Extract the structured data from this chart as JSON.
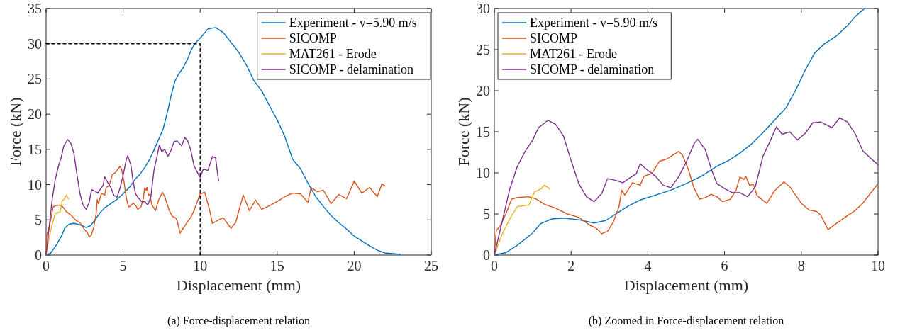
{
  "chart_data": [
    {
      "type": "line",
      "title": "(a) Force-displacement relation",
      "xlabel": "Displacement (mm)",
      "ylabel": "Force (kN)",
      "xlim": [
        0,
        25
      ],
      "ylim": [
        0,
        35
      ],
      "xticks": [
        0,
        5,
        10,
        15,
        20,
        25
      ],
      "yticks": [
        0,
        5,
        10,
        15,
        20,
        25,
        30,
        35
      ],
      "grid": false,
      "legend": "top right",
      "marker": "none",
      "series": [
        {
          "name": "Experiment - v=5.90 m/s",
          "color": "#0072bd",
          "x": [
            0,
            0.3,
            0.6,
            1,
            1.2,
            1.5,
            1.8,
            2.2,
            2.6,
            2.9,
            3.2,
            3.5,
            3.8,
            4.2,
            4.6,
            5,
            5.4,
            5.8,
            6.1,
            6.4,
            6.7,
            7,
            7.3,
            7.6,
            7.9,
            8.1,
            8.35,
            8.6,
            8.9,
            9.2,
            9.4,
            9.65,
            10,
            10.2,
            10.5,
            11,
            11.5,
            12,
            12.5,
            13,
            13.5,
            14,
            14.5,
            15,
            15.5,
            16,
            16.5,
            17,
            17.5,
            18,
            18.5,
            19,
            19.5,
            20,
            20.5,
            21,
            21.5,
            22,
            22.5,
            23
          ],
          "values": [
            0,
            0.3,
            1.2,
            2.7,
            3.8,
            4.4,
            4.5,
            4.3,
            3.9,
            4.2,
            5.1,
            6,
            6.7,
            7.3,
            7.9,
            8.7,
            9.6,
            10.8,
            11.5,
            12.4,
            13.5,
            14.9,
            16.4,
            17.9,
            20.5,
            22.5,
            24.6,
            25.7,
            26.6,
            27.9,
            29,
            30,
            30.8,
            31.3,
            32.1,
            32.3,
            31.6,
            30.2,
            28.8,
            27,
            24.7,
            23.3,
            21.2,
            19.2,
            16.8,
            13.6,
            12.3,
            10.2,
            8.3,
            6.9,
            5.6,
            4.6,
            3.7,
            2.7,
            2,
            1.3,
            0.7,
            0.3,
            0.2,
            0.1
          ]
        },
        {
          "name": "SICOMP",
          "color": "#d95319",
          "x": [
            0,
            0.05,
            0.15,
            0.3,
            0.45,
            0.6,
            0.9,
            1.1,
            1.3,
            1.6,
            1.9,
            2.2,
            2.5,
            2.65,
            2.8,
            2.95,
            3.1,
            3.25,
            3.32,
            3.4,
            3.6,
            3.8,
            3.9,
            4.1,
            4.3,
            4.5,
            4.7,
            4.8,
            4.9,
            5.05,
            5.2,
            5.35,
            5.5,
            5.65,
            5.8,
            5.95,
            6.15,
            6.3,
            6.4,
            6.5,
            6.55,
            6.65,
            6.75,
            6.85,
            7.1,
            7.3,
            7.55,
            7.7,
            8,
            8.2,
            8.4,
            8.5,
            8.7,
            8.9,
            9.2,
            9.4,
            9.6,
            9.8,
            10,
            10.3,
            10.6,
            10.8,
            11.2,
            11.5,
            12,
            12.3,
            12.6,
            12.8,
            13.2,
            13.6,
            14,
            14.5,
            15,
            15.5,
            16,
            16.5,
            17,
            17.2,
            17.6,
            18,
            18.5,
            19,
            19.5,
            20,
            20.5,
            21,
            21.5,
            21.8,
            22
          ],
          "values": [
            0,
            3,
            3.5,
            5,
            6.8,
            7,
            7.1,
            6.8,
            6.2,
            5.7,
            5,
            4.6,
            3.6,
            3.3,
            2.6,
            2.9,
            4,
            5.9,
            7.9,
            7.3,
            8.8,
            8.5,
            9.6,
            9.9,
            11.4,
            11.7,
            12.3,
            12.6,
            12.2,
            10.5,
            8.2,
            6.8,
            7,
            7.4,
            7.1,
            6.5,
            6.8,
            7.9,
            9.5,
            9.2,
            9.6,
            8.5,
            8.6,
            7.2,
            6.3,
            7.8,
            8.9,
            8.3,
            6.3,
            5.5,
            5.3,
            4.9,
            3.1,
            3.8,
            4.8,
            5.4,
            6.3,
            7.5,
            8.7,
            8.9,
            6.5,
            4.5,
            5,
            5.3,
            3.8,
            4.6,
            7,
            8.5,
            6.3,
            7.8,
            6.5,
            7,
            7.6,
            8.3,
            8.8,
            8.7,
            7.5,
            9.6,
            9,
            9.2,
            7.3,
            8.6,
            8,
            10.5,
            8.8,
            9.6,
            8.3,
            10.1,
            9.8
          ]
        },
        {
          "name": "MAT261 - Erode",
          "color": "#edb120",
          "x": [
            0,
            0.2,
            0.4,
            0.6,
            0.9,
            1.05,
            1.2,
            1.3,
            1.4,
            1.45
          ],
          "values": [
            0,
            2.5,
            4.4,
            5.9,
            6.1,
            7.7,
            8,
            8.5,
            8.2,
            8
          ]
        },
        {
          "name": "SICOMP - delamination",
          "color": "#7e2f8e",
          "x": [
            0,
            0.2,
            0.4,
            0.6,
            0.8,
            1,
            1.15,
            1.4,
            1.6,
            1.8,
            2,
            2.2,
            2.4,
            2.6,
            2.8,
            2.95,
            3.15,
            3.35,
            3.5,
            3.7,
            3.8,
            4,
            4.2,
            4.4,
            4.6,
            4.8,
            5,
            5.2,
            5.3,
            5.5,
            5.65,
            5.8,
            6,
            6.2,
            6.4,
            6.6,
            6.8,
            7,
            7.2,
            7.35,
            7.5,
            7.7,
            7.9,
            8.1,
            8.3,
            8.5,
            8.8,
            9,
            9.2,
            9.4,
            9.6,
            9.8,
            10,
            10.2,
            10.5,
            10.8,
            11,
            11.2
          ],
          "values": [
            0,
            4,
            8,
            10.8,
            12.6,
            14,
            15.5,
            16.4,
            15.9,
            14.5,
            11.5,
            8.7,
            7.1,
            6.5,
            7.5,
            9.3,
            9.1,
            8.8,
            9.3,
            9.9,
            11.1,
            10.3,
            9.6,
            8.5,
            8.2,
            9.5,
            11.3,
            13.5,
            14.1,
            12.8,
            10.5,
            8.7,
            8.1,
            7.6,
            7.6,
            7.1,
            8.3,
            12,
            14,
            15.6,
            14.7,
            15,
            14,
            14.8,
            16.1,
            16.2,
            15.5,
            16.7,
            16.2,
            14.8,
            12.7,
            11.8,
            11,
            12.2,
            12,
            14,
            13.8,
            10.5
          ]
        },
        {
          "color": "#000000",
          "line_style": "dashed",
          "x": [
            0,
            10,
            10
          ],
          "values": [
            30,
            30,
            0
          ]
        }
      ]
    },
    {
      "type": "line",
      "title": "(b) Zoomed in Force-displacement relation",
      "xlabel": "Displacement (mm)",
      "ylabel": "Force (kN)",
      "xlim": [
        0,
        10
      ],
      "ylim": [
        0,
        30
      ],
      "xticks": [
        0,
        2,
        4,
        6,
        8,
        10
      ],
      "yticks": [
        0,
        5,
        10,
        15,
        20,
        25,
        30
      ],
      "grid": false,
      "legend": "top left",
      "marker": "none",
      "series": [
        {
          "name": "Experiment - v=5.90 m/s",
          "color": "#0072bd",
          "x": [
            0,
            0.3,
            0.6,
            1,
            1.2,
            1.5,
            1.8,
            2.2,
            2.6,
            2.9,
            3.2,
            3.5,
            3.8,
            4.2,
            4.6,
            5,
            5.4,
            5.8,
            6.1,
            6.4,
            6.7,
            7,
            7.3,
            7.6,
            7.9,
            8.1,
            8.35,
            8.6,
            8.9,
            9.2,
            9.4,
            9.65
          ],
          "values": [
            0,
            0.3,
            1.2,
            2.7,
            3.8,
            4.4,
            4.5,
            4.3,
            3.9,
            4.2,
            5.1,
            6,
            6.7,
            7.3,
            7.9,
            8.7,
            9.6,
            10.8,
            11.5,
            12.4,
            13.5,
            14.9,
            16.4,
            17.9,
            20.5,
            22.5,
            24.6,
            25.7,
            26.6,
            27.9,
            29,
            30
          ]
        },
        {
          "name": "SICOMP",
          "color": "#d95319",
          "x": [
            0,
            0.05,
            0.15,
            0.3,
            0.45,
            0.6,
            0.9,
            1.1,
            1.3,
            1.6,
            1.9,
            2.2,
            2.5,
            2.65,
            2.8,
            2.95,
            3.1,
            3.25,
            3.32,
            3.4,
            3.6,
            3.8,
            3.9,
            4.1,
            4.3,
            4.5,
            4.7,
            4.8,
            4.9,
            5.05,
            5.2,
            5.35,
            5.5,
            5.65,
            5.8,
            5.95,
            6.15,
            6.3,
            6.4,
            6.5,
            6.55,
            6.65,
            6.75,
            6.85,
            7.1,
            7.3,
            7.55,
            7.7,
            8,
            8.2,
            8.4,
            8.5,
            8.7,
            8.9,
            9.2,
            9.4,
            9.6,
            9.8,
            10
          ],
          "values": [
            0,
            3,
            3.5,
            5,
            6.8,
            7,
            7.1,
            6.8,
            6.2,
            5.7,
            5,
            4.6,
            3.6,
            3.3,
            2.6,
            2.9,
            4,
            5.9,
            7.9,
            7.3,
            8.8,
            8.5,
            9.6,
            9.9,
            11.4,
            11.7,
            12.3,
            12.6,
            12.2,
            10.5,
            8.2,
            6.8,
            7,
            7.4,
            7.1,
            6.5,
            6.8,
            7.9,
            9.5,
            9.2,
            9.6,
            8.5,
            8.6,
            7.2,
            6.3,
            7.8,
            8.9,
            8.3,
            6.3,
            5.5,
            5.3,
            4.9,
            3.1,
            3.8,
            4.8,
            5.4,
            6.3,
            7.5,
            8.7
          ]
        },
        {
          "name": "MAT261 - Erode",
          "color": "#edb120",
          "x": [
            0,
            0.2,
            0.4,
            0.6,
            0.9,
            1.05,
            1.2,
            1.3,
            1.4,
            1.45
          ],
          "values": [
            0,
            2.5,
            4.4,
            5.9,
            6.1,
            7.7,
            8,
            8.5,
            8.2,
            8
          ]
        },
        {
          "name": "SICOMP - delamination",
          "color": "#7e2f8e",
          "x": [
            0,
            0.2,
            0.4,
            0.6,
            0.8,
            1,
            1.15,
            1.4,
            1.6,
            1.8,
            2,
            2.2,
            2.4,
            2.6,
            2.8,
            2.95,
            3.15,
            3.35,
            3.5,
            3.7,
            3.8,
            4,
            4.2,
            4.4,
            4.6,
            4.8,
            5,
            5.2,
            5.3,
            5.5,
            5.65,
            5.8,
            6,
            6.2,
            6.4,
            6.6,
            6.8,
            7,
            7.2,
            7.35,
            7.5,
            7.7,
            7.9,
            8.1,
            8.3,
            8.5,
            8.8,
            9,
            9.2,
            9.4,
            9.6,
            9.8,
            10
          ],
          "values": [
            0,
            4,
            8,
            10.8,
            12.6,
            14,
            15.5,
            16.4,
            15.9,
            14.5,
            11.5,
            8.7,
            7.1,
            6.5,
            7.5,
            9.3,
            9.1,
            8.8,
            9.3,
            9.9,
            11.1,
            10.3,
            9.6,
            8.5,
            8.2,
            9.5,
            11.3,
            13.5,
            14.1,
            12.8,
            10.5,
            8.7,
            8.1,
            7.6,
            7.6,
            7.1,
            8.3,
            12,
            14,
            15.6,
            14.7,
            15,
            14,
            14.8,
            16.1,
            16.2,
            15.5,
            16.7,
            16.2,
            14.8,
            12.7,
            11.8,
            11
          ]
        }
      ]
    }
  ]
}
